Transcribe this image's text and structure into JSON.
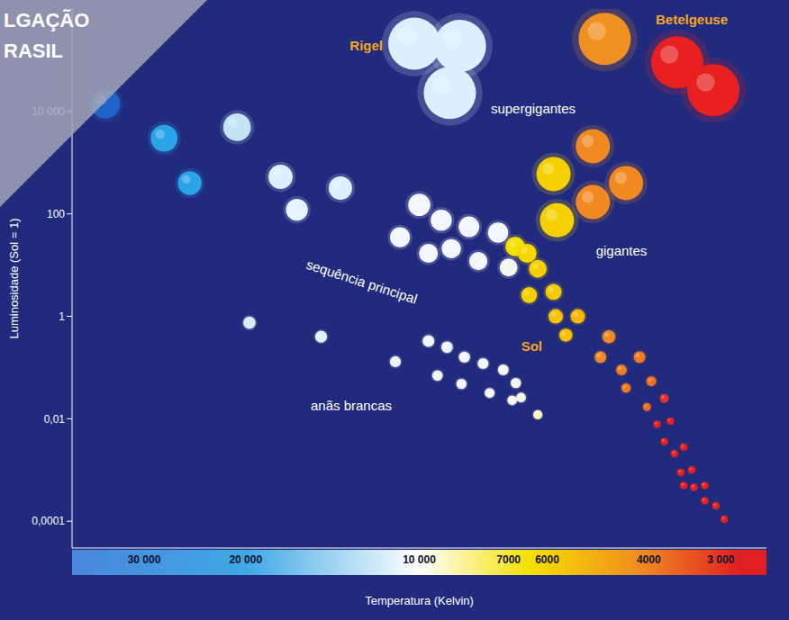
{
  "chart_data": {
    "type": "scatter",
    "log": true,
    "grid": false,
    "xlabel": "Temperatura (Kelvin)",
    "ylabel": "Luminosidade (Sol = 1)",
    "xlim": [
      40000,
      2500
    ],
    "ylim": [
      3e-05,
      1000000
    ],
    "xticks": [
      {
        "value": 30000,
        "label": "30 000"
      },
      {
        "value": 20000,
        "label": "20 000"
      },
      {
        "value": 10000,
        "label": "10 000"
      },
      7000,
      6000,
      4000,
      {
        "value": 3000,
        "label": "3 000"
      }
    ],
    "yticks": [
      {
        "value": 10000,
        "label": "10 000"
      },
      100,
      1,
      {
        "value": 0.01,
        "label": "0,01"
      },
      {
        "value": 0.0001,
        "label": "0,0001"
      }
    ],
    "watermark": [
      "LGAÇÃO",
      "RASIL"
    ],
    "annotations": [
      "Rigel",
      "Betelgeuse",
      "Sol"
    ],
    "series": [
      {
        "name": "sequência principal",
        "x": [
          35000,
          27700,
          20700,
          25000,
          17400,
          13700,
          16300,
          10000,
          9160,
          8200,
          7300,
          10800,
          9640,
          8800,
          7900,
          6820,
          7000,
          6500,
          6230,
          6450,
          5850,
          5800,
          5310,
          5570,
          4690,
          4850,
          4460,
          4150,
          3960,
          4380,
          4030,
          3760,
          3870,
          3670,
          3760,
          3610,
          3480,
          3520,
          3370,
          3480,
          3340,
          3200,
          3200,
          3060,
          2960
        ],
        "values": [
          14000,
          3000,
          4900,
          400,
          530,
          320,
          120,
          150,
          75,
          56,
          43,
          35,
          17,
          21,
          12,
          23,
          9,
          17,
          8.5,
          2.6,
          3,
          1,
          1,
          0.43,
          0.4,
          0.16,
          0.09,
          0.16,
          0.054,
          0.04,
          0.017,
          0.025,
          0.0078,
          0.009,
          0.0036,
          0.0021,
          0.0028,
          0.0009,
          0.001,
          0.0005,
          0.00046,
          0.0005,
          0.00025,
          0.0002,
          0.00011
        ],
        "colors": [
          "#1e64c8",
          "#2aa4e6",
          "#c4e4f6",
          "#2aa4e6",
          "#dcefff",
          "#dcefff",
          "#e6f2ff",
          "#f2f6ff",
          "#f4f6ff",
          "#f4f6ff",
          "#f4f6ff",
          "#f2f6ff",
          "#f4f6ff",
          "#f4f6ff",
          "#f4f6ff",
          "#f5e000",
          "#f6f6f0",
          "#f5d800",
          "#f5d000",
          "#f5d000",
          "#f5c800",
          "#f5c400",
          "#f5b800",
          "#f5c000",
          "#f08a20",
          "#f08a20",
          "#f08020",
          "#f07a20",
          "#f07020",
          "#f07a20",
          "#f06a20",
          "#e8302a",
          "#e82020",
          "#e82020",
          "#e82020",
          "#e82020",
          "#e82020",
          "#e82020",
          "#e82020",
          "#e82020",
          "#e82020",
          "#e82020",
          "#e82020",
          "#e82020",
          "#e82020"
        ]
      },
      {
        "name": "anãs brancas",
        "x": [
          19700,
          14800,
          9640,
          11000,
          8950,
          8350,
          7750,
          7150,
          6800,
          9300,
          8450,
          7550,
          6900,
          6660,
          6230
        ],
        "values": [
          0.75,
          0.4,
          0.33,
          0.13,
          0.25,
          0.16,
          0.12,
          0.09,
          0.05,
          0.07,
          0.048,
          0.032,
          0.023,
          0.026,
          0.012
        ],
        "colors": [
          "#d8ecfa",
          "#e4f0fc",
          "#f0f4ff",
          "#f0f4ff",
          "#f0f4ff",
          "#f4f6ff",
          "#f4f6ff",
          "#f6f6f6",
          "#f6f6f0",
          "#f4f6ff",
          "#f4f6ff",
          "#f6f6f6",
          "#f6f6f0",
          "#f6f4e0",
          "#fff4c0"
        ]
      },
      {
        "name": "gigantes",
        "x": [
          5850,
          5000,
          4380,
          5000,
          5770
        ],
        "values": [
          600,
          2100,
          400,
          170,
          75
        ],
        "colors": [
          "#f5d000",
          "#f08a20",
          "#f08a20",
          "#f08a20",
          "#f5d000"
        ]
      },
      {
        "name": "supergigantes",
        "x": [
          10200,
          8500,
          8850,
          4770,
          3570,
          3090
        ],
        "values": [
          210000,
          190000,
          23000,
          260000,
          91000,
          26000
        ],
        "colors": [
          "#dcefff",
          "#dcefff",
          "#dcefff",
          "#f09020",
          "#e82020",
          "#e82020"
        ]
      }
    ]
  }
}
